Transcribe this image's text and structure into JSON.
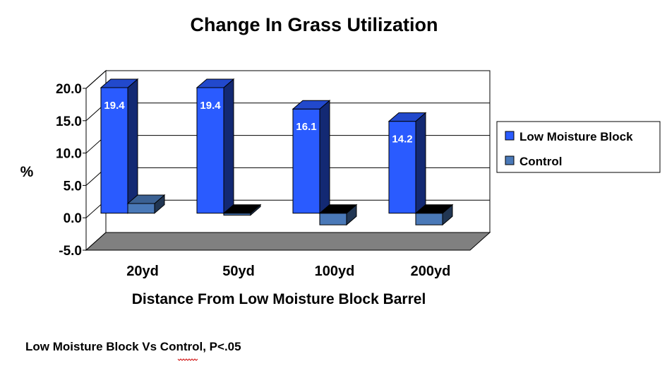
{
  "chart_data": {
    "type": "bar",
    "title": "Change In Grass Utilization",
    "xlabel": "Distance From Low Moisture Block Barrel",
    "ylabel": "%",
    "categories": [
      "20yd",
      "50yd",
      "100yd",
      "200yd"
    ],
    "series": [
      {
        "name": "Low Moisture Block",
        "values": [
          19.4,
          19.4,
          16.1,
          14.2
        ],
        "color": "#2a5bff",
        "labels": [
          "19.4",
          "19.4",
          "16.1",
          "14.2"
        ]
      },
      {
        "name": "Control",
        "values": [
          1.5,
          -0.3,
          -1.8,
          -1.8
        ],
        "color": "#4a79b8"
      }
    ],
    "ylim": [
      -5,
      20
    ],
    "yticks": [
      "20.0",
      "15.0",
      "10.0",
      "5.0",
      "0.0",
      "-5.0"
    ],
    "grid": true,
    "legend": "right",
    "three_d": true
  },
  "footnote": {
    "text": "Low Moisture  Block Vs Control,  P<.05",
    "underlined_word": "Vs"
  }
}
